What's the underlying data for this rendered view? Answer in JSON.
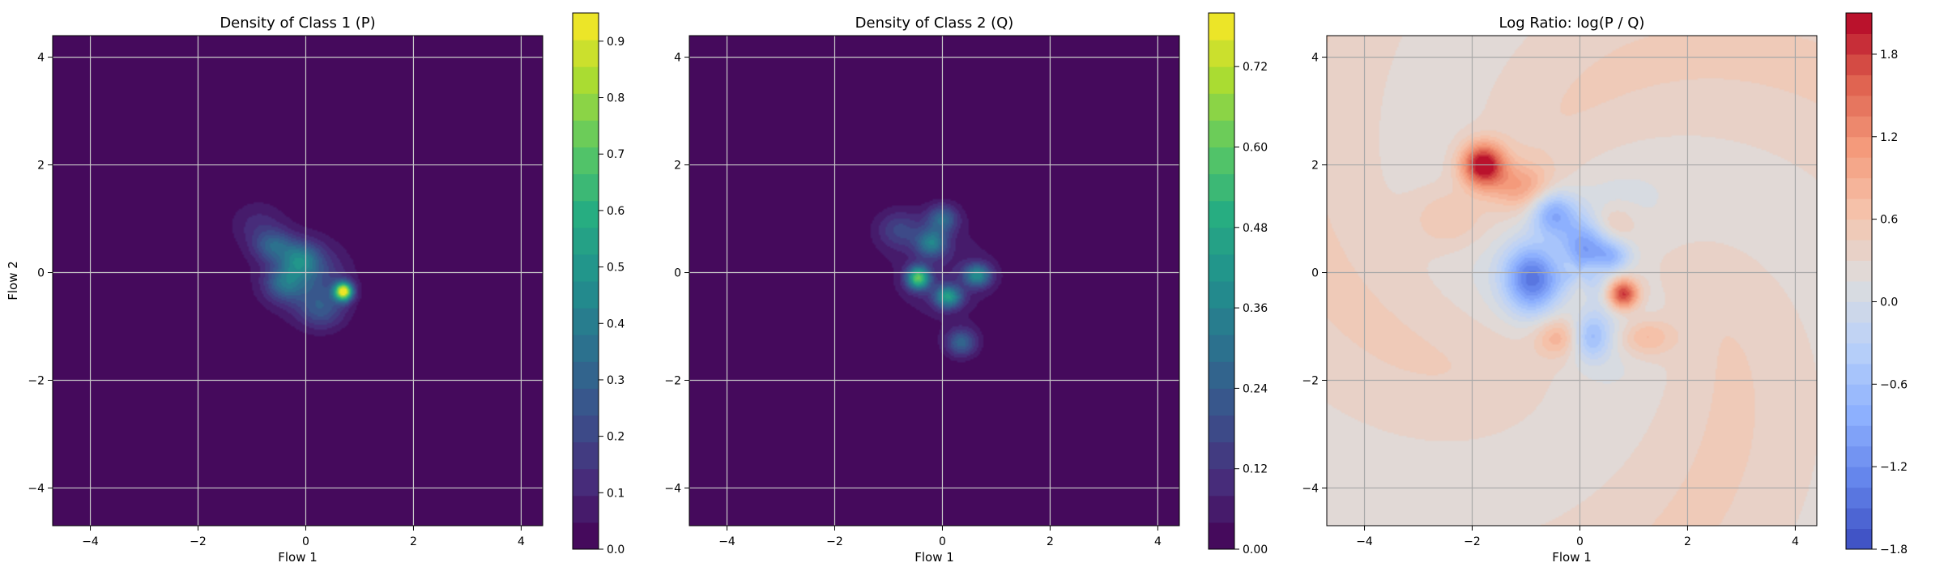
{
  "chart_data": [
    {
      "type": "heatmap",
      "title": "Density of Class 1 (P)",
      "xlabel": "Flow 1",
      "ylabel": "Flow 2",
      "xlim": [
        -4.7,
        4.4
      ],
      "ylim": [
        -4.7,
        4.4
      ],
      "x_ticks": [
        -4,
        -2,
        0,
        2,
        4
      ],
      "y_ticks": [
        -4,
        -2,
        0,
        2,
        4
      ],
      "x_tick_labels": [
        "−4",
        "−2",
        "0",
        "2",
        "4"
      ],
      "y_tick_labels": [
        "−4",
        "−2",
        "0",
        "2",
        "4"
      ],
      "grid": true,
      "colormap": "viridis",
      "colorbar": {
        "range": [
          0.0,
          0.95
        ],
        "ticks": [
          0.0,
          0.1,
          0.2,
          0.3,
          0.4,
          0.5,
          0.6,
          0.7,
          0.8,
          0.9
        ],
        "tick_labels": [
          "0.0",
          "0.1",
          "0.2",
          "0.3",
          "0.4",
          "0.5",
          "0.6",
          "0.7",
          "0.8",
          "0.9"
        ],
        "levels": 20
      },
      "blobs": [
        {
          "x": 0.7,
          "y": -0.35,
          "amp": 0.9,
          "sx": 0.12,
          "sy": 0.12
        },
        {
          "x": -0.1,
          "y": 0.25,
          "amp": 0.3,
          "sx": 0.25,
          "sy": 0.22
        },
        {
          "x": -0.6,
          "y": 0.5,
          "amp": 0.25,
          "sx": 0.25,
          "sy": 0.2
        },
        {
          "x": -0.4,
          "y": -0.2,
          "amp": 0.25,
          "sx": 0.25,
          "sy": 0.22
        },
        {
          "x": 0.3,
          "y": -0.7,
          "amp": 0.2,
          "sx": 0.3,
          "sy": 0.25
        },
        {
          "x": 0.1,
          "y": -0.1,
          "amp": 0.18,
          "sx": 0.45,
          "sy": 0.4
        },
        {
          "x": -0.9,
          "y": 0.9,
          "amp": 0.1,
          "sx": 0.35,
          "sy": 0.3
        },
        {
          "x": -0.2,
          "y": 0.0,
          "amp": 0.05,
          "sx": 0.75,
          "sy": 0.7
        }
      ]
    },
    {
      "type": "heatmap",
      "title": "Density of Class 2 (Q)",
      "xlabel": "Flow 1",
      "ylabel": "",
      "xlim": [
        -4.7,
        4.4
      ],
      "ylim": [
        -4.7,
        4.4
      ],
      "x_ticks": [
        -4,
        -2,
        0,
        2,
        4
      ],
      "y_ticks": [
        -4,
        -2,
        0,
        2,
        4
      ],
      "x_tick_labels": [
        "−4",
        "−2",
        "0",
        "2",
        "4"
      ],
      "y_tick_labels": [
        "−4",
        "−2",
        "0",
        "2",
        "4"
      ],
      "grid": true,
      "colormap": "viridis",
      "colorbar": {
        "range": [
          0.0,
          0.8
        ],
        "ticks": [
          0.0,
          0.12,
          0.24,
          0.36,
          0.48,
          0.6,
          0.72
        ],
        "tick_labels": [
          "0.00",
          "0.12",
          "0.24",
          "0.36",
          "0.48",
          "0.60",
          "0.72"
        ],
        "levels": 20
      },
      "blobs": [
        {
          "x": -0.45,
          "y": -0.1,
          "amp": 0.55,
          "sx": 0.15,
          "sy": 0.15
        },
        {
          "x": 0.1,
          "y": -0.45,
          "amp": 0.4,
          "sx": 0.18,
          "sy": 0.15
        },
        {
          "x": 0.65,
          "y": -0.05,
          "amp": 0.35,
          "sx": 0.18,
          "sy": 0.15
        },
        {
          "x": -0.2,
          "y": 0.55,
          "amp": 0.3,
          "sx": 0.2,
          "sy": 0.18
        },
        {
          "x": 0.0,
          "y": 1.0,
          "amp": 0.25,
          "sx": 0.2,
          "sy": 0.18
        },
        {
          "x": 0.35,
          "y": -1.3,
          "amp": 0.25,
          "sx": 0.2,
          "sy": 0.18
        },
        {
          "x": -0.8,
          "y": 0.8,
          "amp": 0.15,
          "sx": 0.3,
          "sy": 0.25
        },
        {
          "x": 0.0,
          "y": 0.0,
          "amp": 0.07,
          "sx": 0.8,
          "sy": 0.75
        }
      ]
    },
    {
      "type": "heatmap",
      "title": "Log Ratio: log(P / Q)",
      "xlabel": "Flow 1",
      "ylabel": "",
      "xlim": [
        -4.7,
        4.4
      ],
      "ylim": [
        -4.7,
        4.4
      ],
      "x_ticks": [
        -4,
        -2,
        0,
        2,
        4
      ],
      "y_ticks": [
        -4,
        -2,
        0,
        2,
        4
      ],
      "x_tick_labels": [
        "−4",
        "−2",
        "0",
        "2",
        "4"
      ],
      "y_tick_labels": [
        "−4",
        "−2",
        "0",
        "2",
        "4"
      ],
      "grid": true,
      "colormap": "coolwarm",
      "colorbar": {
        "range": [
          -1.8,
          2.1
        ],
        "ticks": [
          -1.8,
          -1.2,
          -0.6,
          0.0,
          0.6,
          1.2,
          1.8
        ],
        "tick_labels": [
          "−1.8",
          "−1.2",
          "−0.6",
          "0.0",
          "0.6",
          "1.2",
          "1.8"
        ],
        "levels": 26
      },
      "background_value": 0.35,
      "blobs": [
        {
          "x": -1.8,
          "y": 2.0,
          "amp": 1.9,
          "sx": 0.28,
          "sy": 0.28
        },
        {
          "x": 0.8,
          "y": -0.4,
          "amp": 1.8,
          "sx": 0.2,
          "sy": 0.2
        },
        {
          "x": -0.9,
          "y": -0.1,
          "amp": -1.4,
          "sx": 0.35,
          "sy": 0.45
        },
        {
          "x": -0.5,
          "y": 1.1,
          "amp": -1.1,
          "sx": 0.3,
          "sy": 0.3
        },
        {
          "x": 0.1,
          "y": 0.5,
          "amp": -0.9,
          "sx": 0.35,
          "sy": 0.35
        },
        {
          "x": 0.6,
          "y": 0.3,
          "amp": -0.7,
          "sx": 0.25,
          "sy": 0.2
        },
        {
          "x": 0.2,
          "y": -1.2,
          "amp": -0.8,
          "sx": 0.25,
          "sy": 0.3
        },
        {
          "x": -0.4,
          "y": -1.2,
          "amp": 0.6,
          "sx": 0.3,
          "sy": 0.25
        },
        {
          "x": 1.2,
          "y": -1.2,
          "amp": 0.6,
          "sx": 0.35,
          "sy": 0.25
        },
        {
          "x": -1.1,
          "y": 1.6,
          "amp": 0.7,
          "sx": 0.4,
          "sy": 0.3
        },
        {
          "x": -2.4,
          "y": 1.0,
          "amp": 0.4,
          "sx": 0.5,
          "sy": 0.4
        },
        {
          "x": 0.6,
          "y": 0.9,
          "amp": 0.5,
          "sx": 0.3,
          "sy": 0.25
        }
      ]
    }
  ]
}
